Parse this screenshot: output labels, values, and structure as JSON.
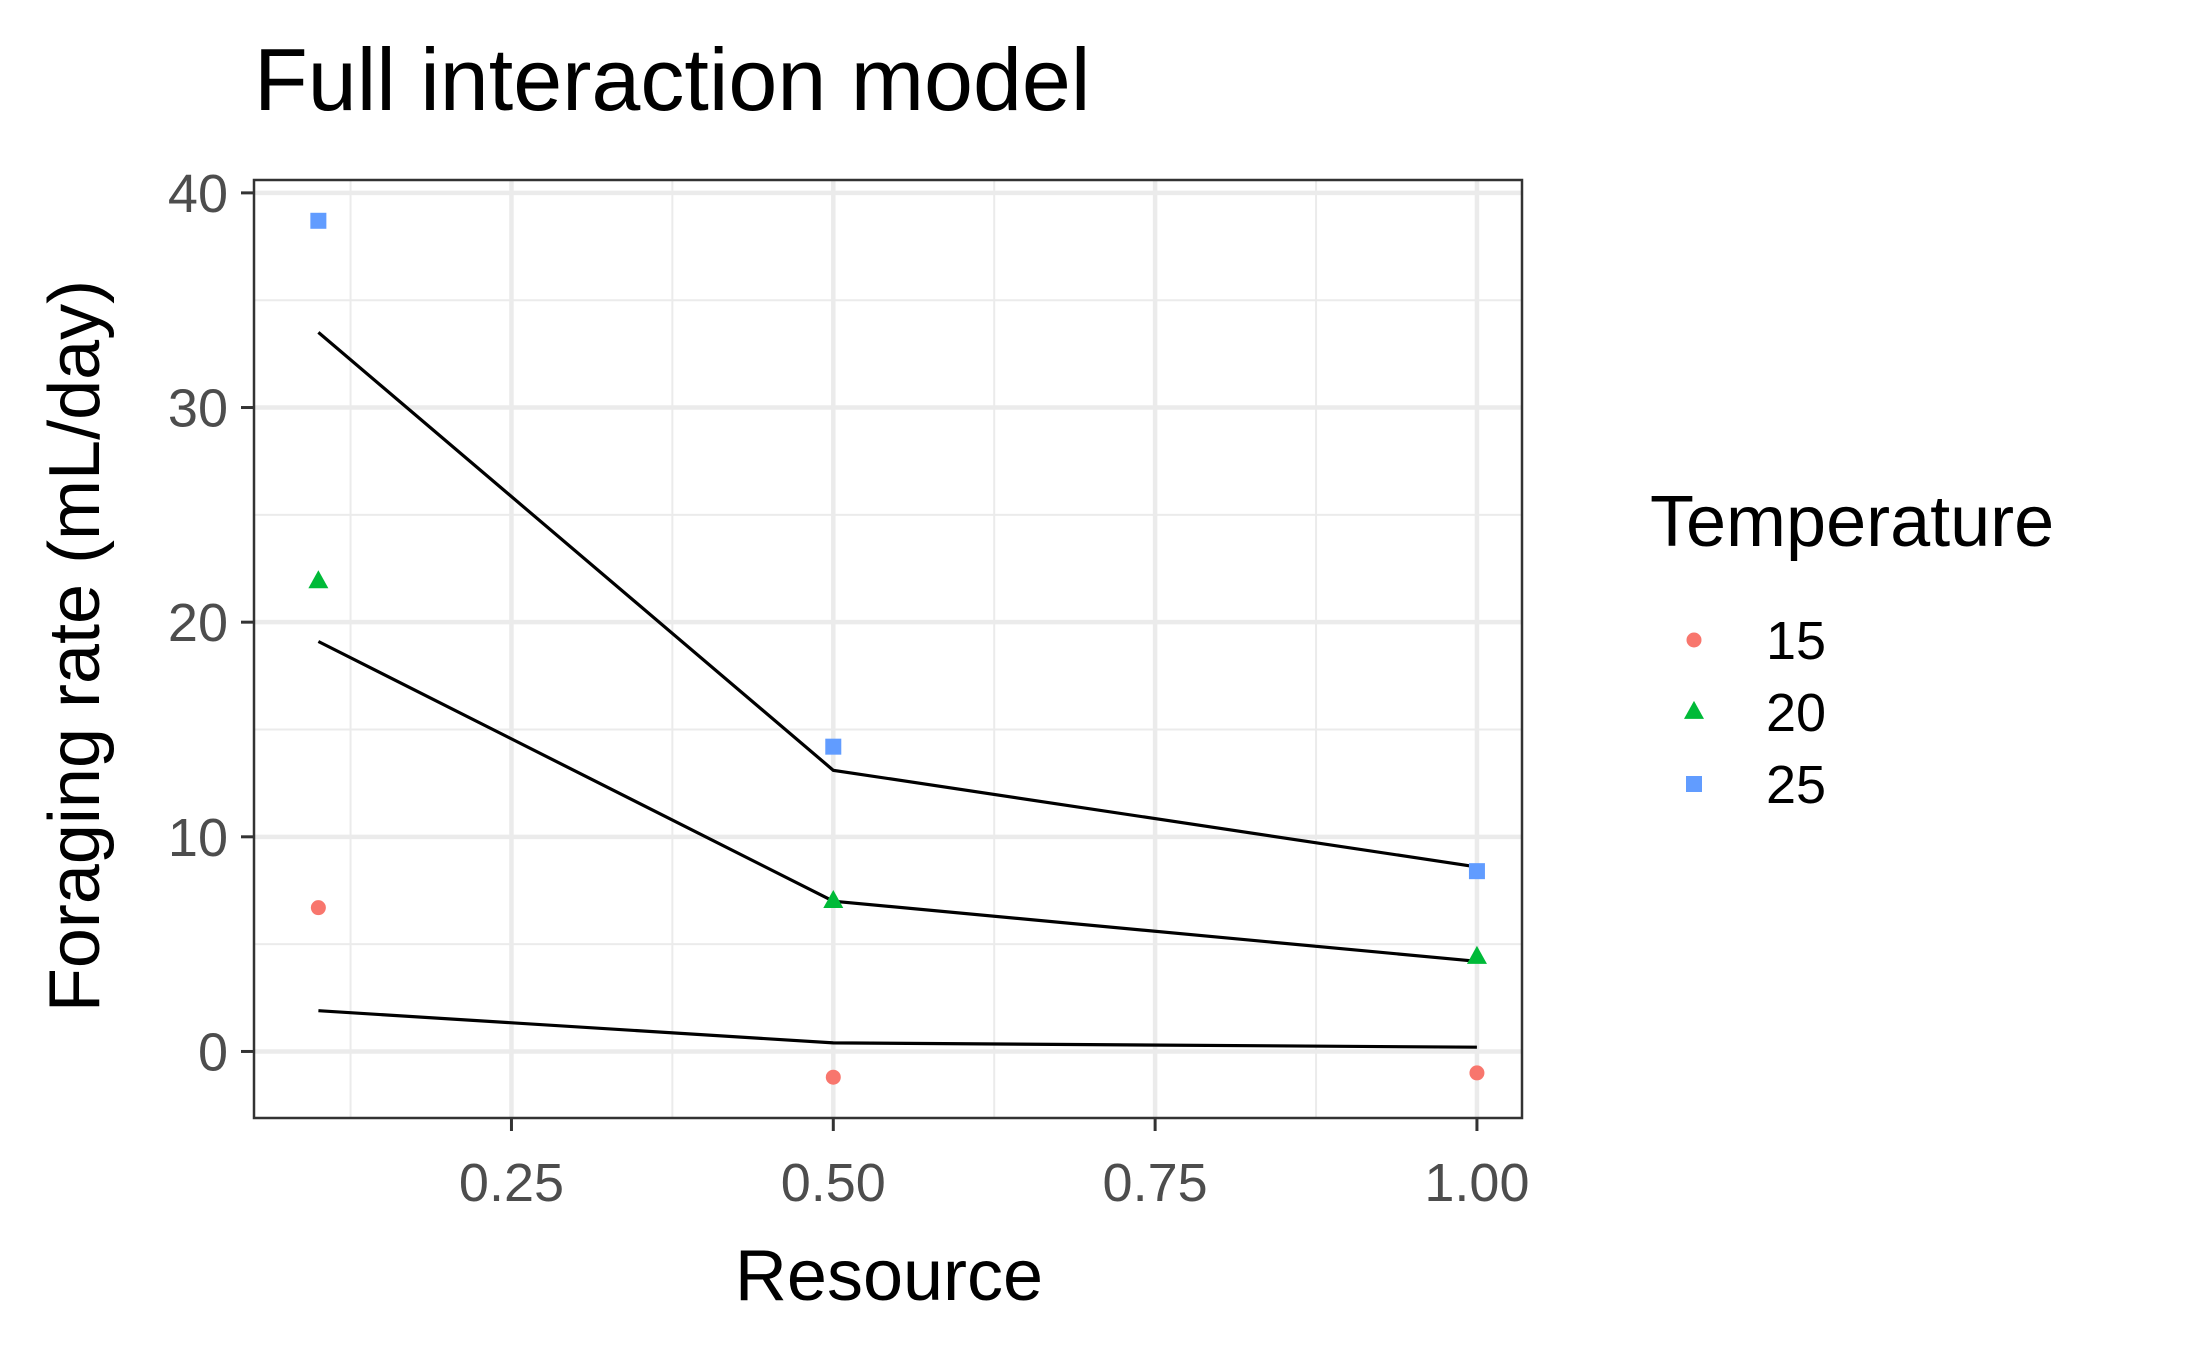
{
  "chart_data": {
    "type": "scatter",
    "title": "Full interaction model",
    "xlabel": "Resource",
    "ylabel": "Foraging rate (mL/day)",
    "xlim": [
      0.05,
      1.035
    ],
    "ylim": [
      -3.1,
      40.6
    ],
    "x_ticks": [
      0.25,
      0.5,
      0.75,
      1.0
    ],
    "x_tick_labels": [
      "0.25",
      "0.50",
      "0.75",
      "1.00"
    ],
    "y_ticks": [
      0,
      10,
      20,
      30,
      40
    ],
    "y_tick_labels": [
      "0",
      "10",
      "20",
      "30",
      "40"
    ],
    "grid": true,
    "legend": {
      "title": "Temperature",
      "position": "right"
    },
    "series": [
      {
        "name": "15",
        "color": "#F8766D",
        "marker": "circle",
        "points": [
          {
            "x": 0.1,
            "y": 6.7
          },
          {
            "x": 0.5,
            "y": -1.2
          },
          {
            "x": 1.0,
            "y": -1.0
          }
        ],
        "fit": [
          {
            "x": 0.1,
            "y": 1.9
          },
          {
            "x": 0.5,
            "y": 0.4
          },
          {
            "x": 1.0,
            "y": 0.2
          }
        ]
      },
      {
        "name": "20",
        "color": "#00BA38",
        "marker": "triangle",
        "points": [
          {
            "x": 0.1,
            "y": 21.9
          },
          {
            "x": 0.5,
            "y": 7.0
          },
          {
            "x": 1.0,
            "y": 4.4
          }
        ],
        "fit": [
          {
            "x": 0.1,
            "y": 19.1
          },
          {
            "x": 0.5,
            "y": 7.0
          },
          {
            "x": 1.0,
            "y": 4.2
          }
        ]
      },
      {
        "name": "25",
        "color": "#619CFF",
        "marker": "square",
        "points": [
          {
            "x": 0.1,
            "y": 38.7
          },
          {
            "x": 0.5,
            "y": 14.2
          },
          {
            "x": 1.0,
            "y": 8.4
          }
        ],
        "fit": [
          {
            "x": 0.1,
            "y": 33.5
          },
          {
            "x": 0.5,
            "y": 13.1
          },
          {
            "x": 1.0,
            "y": 8.6
          }
        ]
      }
    ]
  }
}
